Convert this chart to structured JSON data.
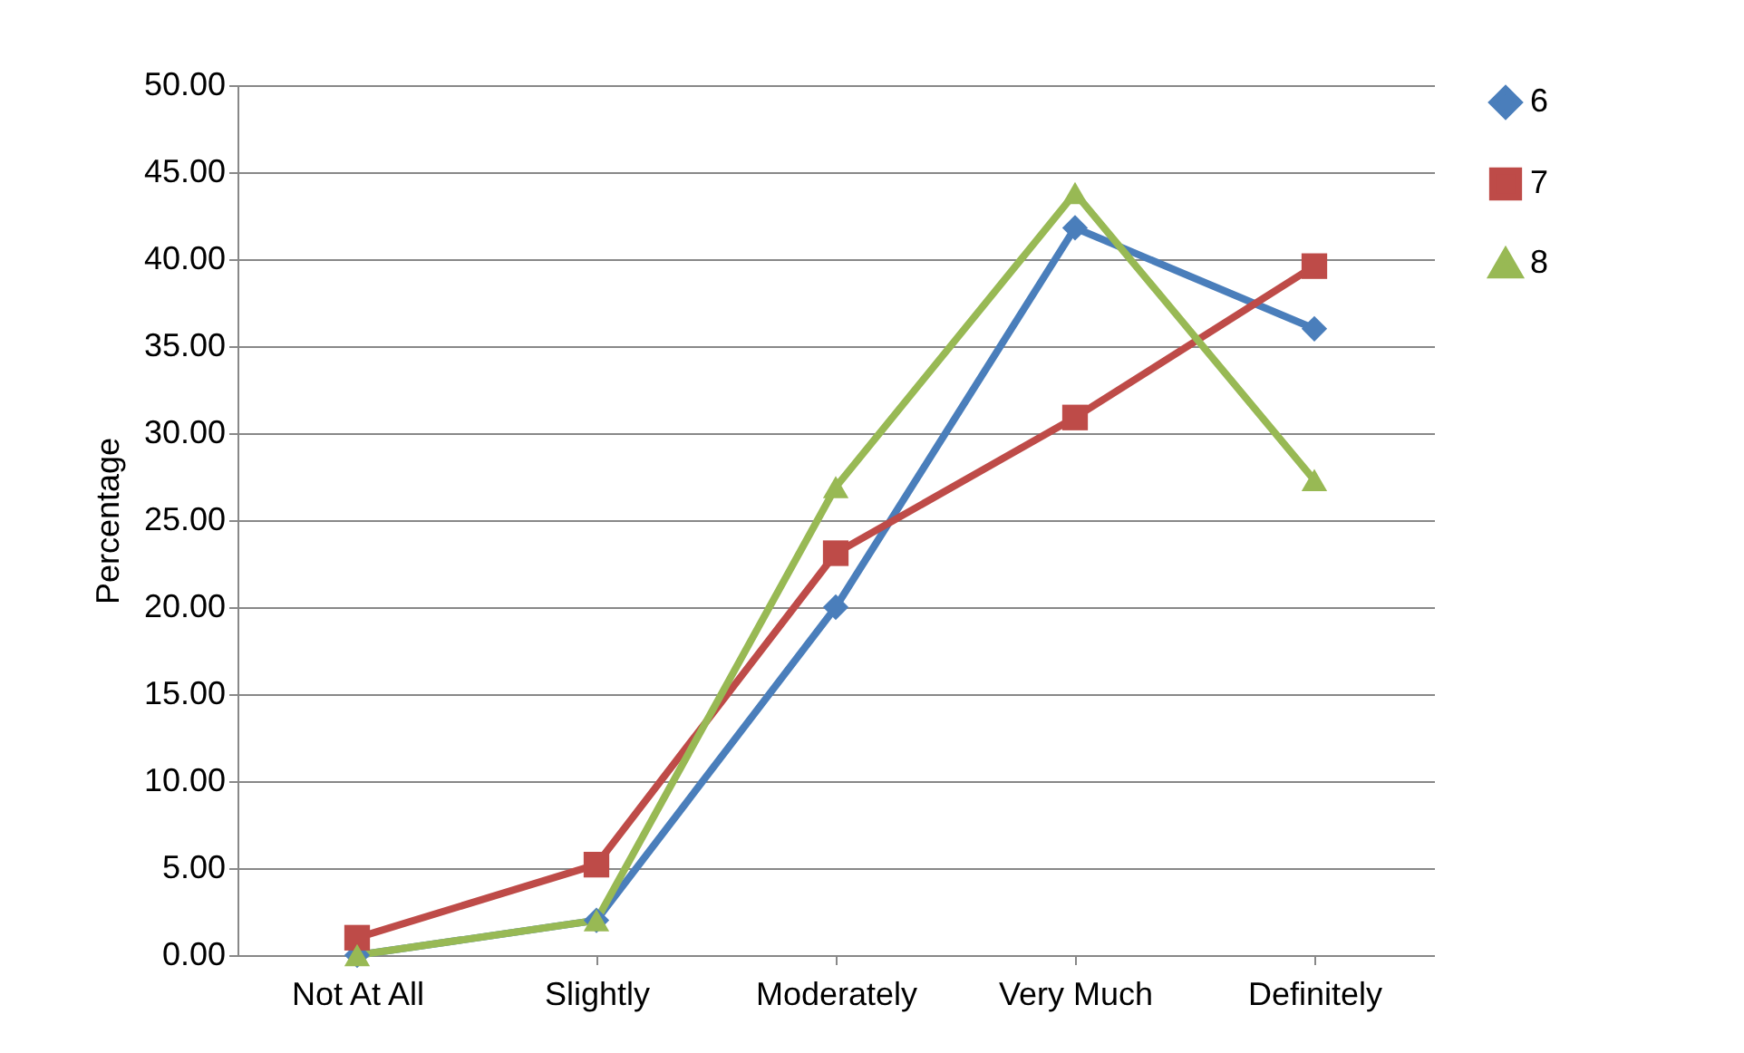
{
  "chart_data": {
    "type": "line",
    "ylabel": "Percentage",
    "categories": [
      "Not At All",
      "Slightly",
      "Moderately",
      "Very Much",
      "Definitely"
    ],
    "series": [
      {
        "name": "6",
        "color": "#4a7ebb",
        "marker": "diamond",
        "values": [
          0,
          2.0,
          20.0,
          41.8,
          36.0
        ]
      },
      {
        "name": "7",
        "color": "#be4b48",
        "marker": "square",
        "values": [
          1.0,
          5.2,
          23.1,
          30.9,
          39.6
        ]
      },
      {
        "name": "8",
        "color": "#98b954",
        "marker": "triangle",
        "values": [
          0,
          2.0,
          26.9,
          43.8,
          27.3
        ]
      }
    ],
    "ylim": [
      0,
      50
    ],
    "yticks": [
      {
        "value": 0,
        "label": "0.00"
      },
      {
        "value": 5,
        "label": "5.00"
      },
      {
        "value": 10,
        "label": "10.00"
      },
      {
        "value": 15,
        "label": "15.00"
      },
      {
        "value": 20,
        "label": "20.00"
      },
      {
        "value": 25,
        "label": "25.00"
      },
      {
        "value": 30,
        "label": "30.00"
      },
      {
        "value": 35,
        "label": "35.00"
      },
      {
        "value": 40,
        "label": "40.00"
      },
      {
        "value": 45,
        "label": "45.00"
      },
      {
        "value": 50,
        "label": "50.00"
      }
    ],
    "grid": "y",
    "legend": "right",
    "line_style": "solid"
  }
}
